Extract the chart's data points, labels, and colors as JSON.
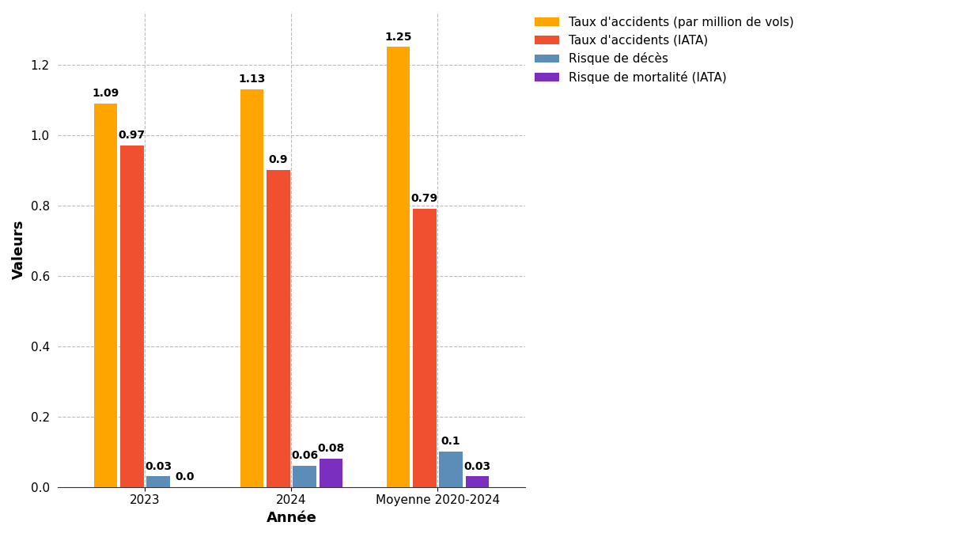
{
  "categories": [
    "2023",
    "2024",
    "Moyenne 2020-2024"
  ],
  "series": [
    {
      "label": "Taux d'accidents (par million de vols)",
      "color": "#FFA500",
      "values": [
        1.09,
        1.13,
        1.25
      ]
    },
    {
      "label": "Taux d'accidents (IATA)",
      "color": "#F05030",
      "values": [
        0.97,
        0.9,
        0.79
      ]
    },
    {
      "label": "Risque de décès",
      "color": "#5B8DB8",
      "values": [
        0.03,
        0.06,
        0.1
      ]
    },
    {
      "label": "Risque de mortalité (IATA)",
      "color": "#7B2FBE",
      "values": [
        0.0,
        0.08,
        0.03
      ]
    }
  ],
  "xlabel": "Année",
  "ylabel": "Valeurs",
  "xlabel_fontsize": 13,
  "ylabel_fontsize": 13,
  "xlabel_fontweight": "bold",
  "ylabel_fontweight": "bold",
  "tick_fontsize": 11,
  "bar_label_fontsize": 10,
  "bar_label_fontweight": "bold",
  "legend_fontsize": 11,
  "ylim": [
    0,
    1.35
  ],
  "background_color": "#FFFFFF",
  "grid_color": "#BBBBBB",
  "bar_width": 0.16,
  "group_width": 0.75
}
